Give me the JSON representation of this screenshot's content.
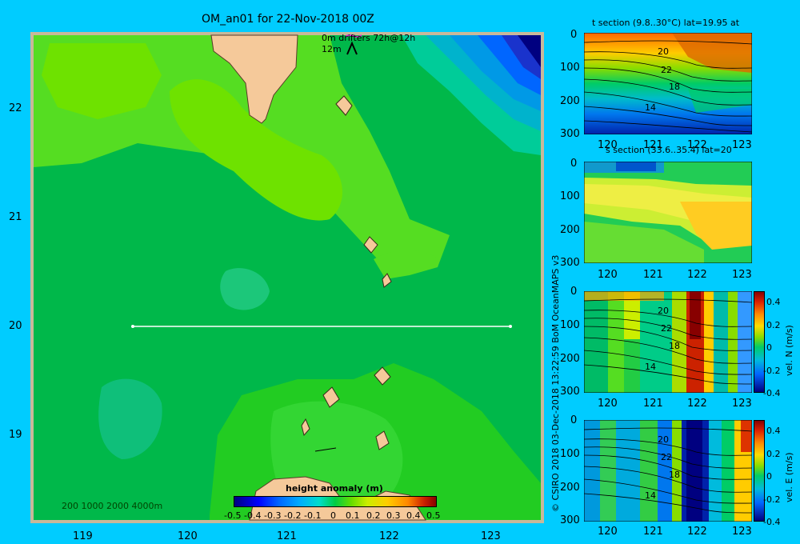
{
  "map": {
    "title": "OM_an01 for 22-Nov-2018 00Z",
    "legend_line1": "0m   drifters 72h@12h",
    "legend_line2": "12m",
    "x_ticks": [
      "119",
      "120",
      "121",
      "122",
      "123"
    ],
    "y_ticks": [
      "22",
      "21",
      "20",
      "19"
    ],
    "depth_scale": "200  1000  2000  4000m",
    "colorbar_title": "height anomaly (m)",
    "colorbar_ticks": [
      "-0.5",
      "-0.4",
      "-0.3",
      "-0.2",
      "-0.1",
      "0",
      "0.1",
      "0.2",
      "0.3",
      "0.4",
      "0.5"
    ],
    "colors": {
      "background": "#00ccff",
      "land": "#f5c99a",
      "frame": "#c8b89a",
      "section_line": "#ffffff"
    }
  },
  "sections": [
    {
      "title": "t section (9.8..30°C) lat=19.95 at",
      "y_ticks": [
        "0",
        "100",
        "200",
        "300"
      ],
      "x_ticks": [
        "120",
        "121",
        "122",
        "123"
      ],
      "contour_labels": [
        "20",
        "22",
        "18",
        "14"
      ]
    },
    {
      "title": "s section (33.6..35.4) lat=20",
      "y_ticks": [
        "0",
        "100",
        "200",
        "300"
      ],
      "x_ticks": [
        "120",
        "121",
        "122",
        "123"
      ]
    },
    {
      "title": "",
      "y_ticks": [
        "0",
        "100",
        "200",
        "300"
      ],
      "x_ticks": [
        "120",
        "121",
        "122",
        "123"
      ],
      "contour_labels": [
        "20",
        "22",
        "18",
        "14"
      ],
      "cbar_ticks": [
        "0.4",
        "0.2",
        "0",
        "-0.2",
        "-0.4"
      ],
      "cbar_label": "vel. N (m/s)"
    },
    {
      "title": "",
      "y_ticks": [
        "0",
        "100",
        "200",
        "300"
      ],
      "x_ticks": [
        "120",
        "121",
        "122",
        "123"
      ],
      "contour_labels": [
        "20",
        "22",
        "18",
        "14"
      ],
      "cbar_ticks": [
        "0.4",
        "0.2",
        "0",
        "-0.2",
        "-0.4"
      ],
      "cbar_label": "vel. E (m/s)"
    }
  ],
  "credit": "© CSIRO 2018   03-Dec-2018 13:22:59 BoM OceanMAPS v3"
}
